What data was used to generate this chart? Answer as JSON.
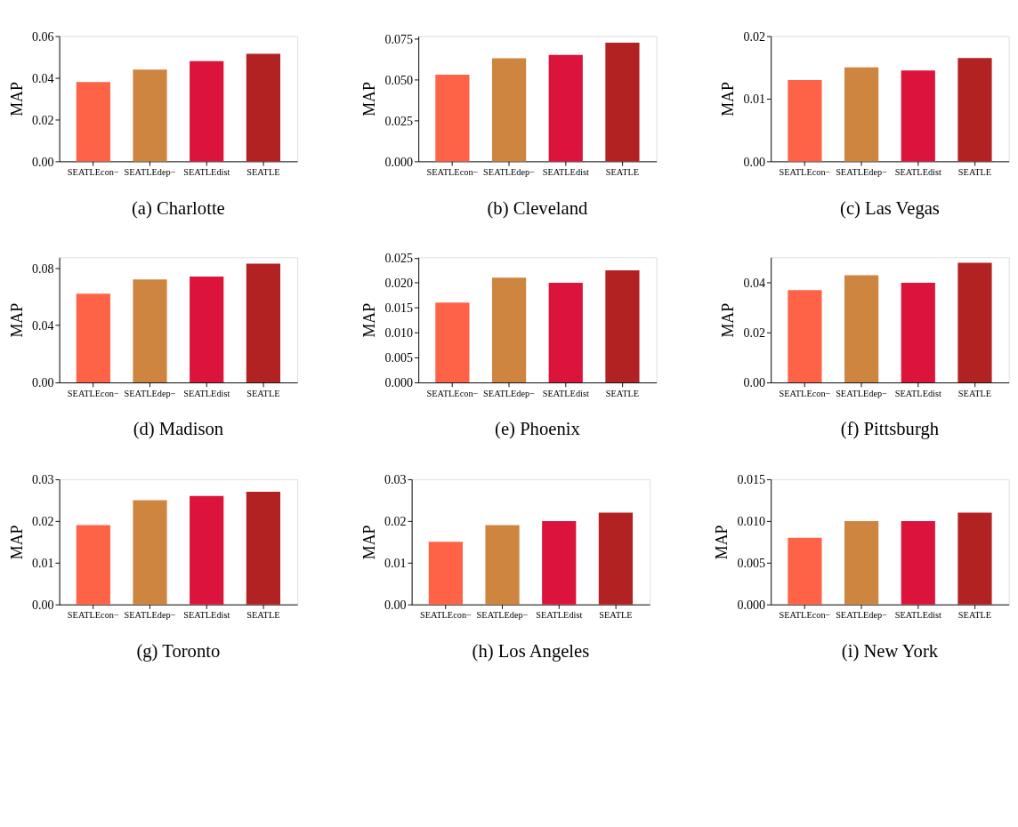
{
  "chart_data": [
    {
      "type": "bar",
      "title": "(a) Charlotte",
      "ylabel": "MAP",
      "categories": [
        "SEATLEcon−",
        "SEATLEdep−",
        "SEATLEdist",
        "SEATLE"
      ],
      "colors": [
        "#ff6347",
        "#cd853f",
        "#dc143c",
        "#b22222"
      ],
      "values": [
        0.038,
        0.044,
        0.048,
        0.0515
      ],
      "ylim": [
        0,
        0.06
      ],
      "yticks": [
        {
          "value": 0,
          "label": "0.00"
        },
        {
          "value": 0.02,
          "label": "0.02"
        },
        {
          "value": 0.04,
          "label": "0.04"
        },
        {
          "value": 0.06,
          "label": "0.06"
        }
      ],
      "grid": false
    },
    {
      "type": "bar",
      "title": "(b) Cleveland",
      "ylabel": "MAP",
      "categories": [
        "SEATLEcon−",
        "SEATLEdep−",
        "SEATLEdist",
        "SEATLE"
      ],
      "colors": [
        "#ff6347",
        "#cd853f",
        "#dc143c",
        "#b22222"
      ],
      "values": [
        0.053,
        0.063,
        0.065,
        0.0725
      ],
      "ylim": [
        0,
        0.0765
      ],
      "yticks": [
        {
          "value": 0,
          "label": "0.000"
        },
        {
          "value": 0.025,
          "label": "0.025"
        },
        {
          "value": 0.05,
          "label": "0.050"
        },
        {
          "value": 0.075,
          "label": "0.075"
        }
      ],
      "grid": false
    },
    {
      "type": "bar",
      "title": "(c) Las Vegas",
      "ylabel": "MAP",
      "categories": [
        "SEATLEcon−",
        "SEATLEdep−",
        "SEATLEdist",
        "SEATLE"
      ],
      "colors": [
        "#ff6347",
        "#cd853f",
        "#dc143c",
        "#b22222"
      ],
      "values": [
        0.013,
        0.015,
        0.0145,
        0.0165
      ],
      "ylim": [
        0,
        0.02
      ],
      "yticks": [
        {
          "value": 0,
          "label": "0.00"
        },
        {
          "value": 0.01,
          "label": "0.01"
        },
        {
          "value": 0.02,
          "label": "0.02"
        }
      ],
      "grid": false
    },
    {
      "type": "bar",
      "title": "(d) Madison",
      "ylabel": "MAP",
      "categories": [
        "SEATLEcon−",
        "SEATLEdep−",
        "SEATLEdist",
        "SEATLE"
      ],
      "colors": [
        "#ff6347",
        "#cd853f",
        "#dc143c",
        "#b22222"
      ],
      "values": [
        0.062,
        0.072,
        0.074,
        0.083
      ],
      "ylim": [
        0,
        0.0875
      ],
      "yticks": [
        {
          "value": 0,
          "label": "0.00"
        },
        {
          "value": 0.04,
          "label": "0.04"
        },
        {
          "value": 0.08,
          "label": "0.08"
        }
      ],
      "grid": false
    },
    {
      "type": "bar",
      "title": "(e) Phoenix",
      "ylabel": "MAP",
      "categories": [
        "SEATLEcon−",
        "SEATLEdep−",
        "SEATLEdist",
        "SEATLE"
      ],
      "colors": [
        "#ff6347",
        "#cd853f",
        "#dc143c",
        "#b22222"
      ],
      "values": [
        0.016,
        0.021,
        0.02,
        0.0225
      ],
      "ylim": [
        0,
        0.0251
      ],
      "yticks": [
        {
          "value": 0,
          "label": "0.000"
        },
        {
          "value": 0.005,
          "label": "0.005"
        },
        {
          "value": 0.01,
          "label": "0.010"
        },
        {
          "value": 0.015,
          "label": "0.015"
        },
        {
          "value": 0.02,
          "label": "0.020"
        },
        {
          "value": 0.025,
          "label": "0.025"
        }
      ],
      "grid": false
    },
    {
      "type": "bar",
      "title": "(f) Pittsburgh",
      "ylabel": "MAP",
      "categories": [
        "SEATLEcon−",
        "SEATLEdep−",
        "SEATLEdist",
        "SEATLE"
      ],
      "colors": [
        "#ff6347",
        "#cd853f",
        "#dc143c",
        "#b22222"
      ],
      "values": [
        0.037,
        0.043,
        0.04,
        0.048
      ],
      "ylim": [
        0,
        0.0502
      ],
      "yticks": [
        {
          "value": 0,
          "label": "0.00"
        },
        {
          "value": 0.02,
          "label": "0.02"
        },
        {
          "value": 0.04,
          "label": "0.04"
        }
      ],
      "grid": false
    },
    {
      "type": "bar",
      "title": "(g) Toronto",
      "ylabel": "MAP",
      "categories": [
        "SEATLEcon−",
        "SEATLEdep−",
        "SEATLEdist",
        "SEATLE"
      ],
      "colors": [
        "#ff6347",
        "#cd853f",
        "#dc143c",
        "#b22222"
      ],
      "values": [
        0.019,
        0.025,
        0.026,
        0.027
      ],
      "ylim": [
        0,
        0.03
      ],
      "yticks": [
        {
          "value": 0,
          "label": "0.00"
        },
        {
          "value": 0.01,
          "label": "0.01"
        },
        {
          "value": 0.02,
          "label": "0.02"
        },
        {
          "value": 0.03,
          "label": "0.03"
        }
      ],
      "grid": false
    },
    {
      "type": "bar",
      "title": "(h) Los Angeles",
      "ylabel": "MAP",
      "categories": [
        "SEATLEcon−",
        "SEATLEdep−",
        "SEATLEdist",
        "SEATLE"
      ],
      "colors": [
        "#ff6347",
        "#cd853f",
        "#dc143c",
        "#b22222"
      ],
      "values": [
        0.015,
        0.019,
        0.02,
        0.022
      ],
      "ylim": [
        0,
        0.03
      ],
      "yticks": [
        {
          "value": 0,
          "label": "0.00"
        },
        {
          "value": 0.01,
          "label": "0.01"
        },
        {
          "value": 0.02,
          "label": "0.02"
        },
        {
          "value": 0.03,
          "label": "0.03"
        }
      ],
      "grid": false
    },
    {
      "type": "bar",
      "title": "(i) New York",
      "ylabel": "MAP",
      "categories": [
        "SEATLEcon−",
        "SEATLEdep−",
        "SEATLEdist",
        "SEATLE"
      ],
      "colors": [
        "#ff6347",
        "#cd853f",
        "#dc143c",
        "#b22222"
      ],
      "values": [
        0.008,
        0.01,
        0.01,
        0.011
      ],
      "ylim": [
        0,
        0.015
      ],
      "yticks": [
        {
          "value": 0,
          "label": "0.000"
        },
        {
          "value": 0.005,
          "label": "0.005"
        },
        {
          "value": 0.01,
          "label": "0.010"
        },
        {
          "value": 0.015,
          "label": "0.015"
        }
      ],
      "grid": false
    }
  ]
}
